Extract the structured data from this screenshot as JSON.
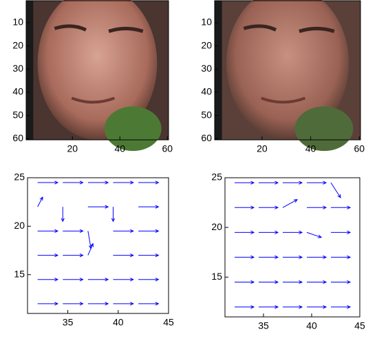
{
  "chart_data": [
    {
      "type": "image",
      "xlim": [
        0.5,
        60.5
      ],
      "ylim": [
        0.5,
        60.5
      ],
      "xticks": [
        20,
        40,
        60
      ],
      "yticks": [
        10,
        20,
        30,
        40,
        50,
        60
      ]
    },
    {
      "type": "image",
      "xlim": [
        0.5,
        60.5
      ],
      "ylim": [
        0.5,
        60.5
      ],
      "xticks": [
        20,
        40,
        60
      ],
      "yticks": [
        10,
        20,
        30,
        40,
        50,
        60
      ]
    },
    {
      "type": "quiver",
      "color": "#0000ff",
      "xlim": [
        31,
        45
      ],
      "ylim": [
        11,
        25
      ],
      "xticks": [
        35,
        40,
        45
      ],
      "yticks": [
        15,
        20,
        25
      ],
      "x": [
        32,
        34.5,
        37,
        39.5,
        42,
        32,
        34.5,
        37,
        39.5,
        42,
        32,
        34.5,
        37,
        39.5,
        42,
        32,
        34.5,
        37,
        39.5,
        42,
        32,
        34.5,
        37,
        39.5,
        42,
        32,
        34.5,
        37,
        39.5,
        42
      ],
      "y": [
        12,
        12,
        12,
        12,
        12,
        14.5,
        14.5,
        14.5,
        14.5,
        14.5,
        17,
        17,
        17,
        17,
        17,
        19.5,
        19.5,
        19.5,
        19.5,
        19.5,
        22,
        22,
        22,
        22,
        22,
        24.5,
        24.5,
        24.5,
        24.5,
        24.5
      ],
      "u": [
        2,
        2,
        2,
        2,
        2,
        2,
        2,
        2,
        2,
        2,
        2,
        2,
        0.5,
        2,
        2,
        2,
        2,
        0.3,
        2,
        2,
        0.5,
        0,
        2,
        0,
        2,
        2,
        2,
        2,
        2,
        2
      ],
      "v": [
        0,
        0,
        0,
        0,
        0,
        0,
        0,
        0,
        0,
        0,
        0,
        0,
        1.2,
        0,
        0,
        0,
        0,
        -1.8,
        0,
        0,
        1,
        -1.5,
        0,
        -1.5,
        0,
        0,
        0,
        0,
        0,
        0
      ]
    },
    {
      "type": "quiver",
      "color": "#0000ff",
      "xlim": [
        31,
        45
      ],
      "ylim": [
        11,
        25
      ],
      "xticks": [
        35,
        40,
        45
      ],
      "yticks": [
        15,
        20,
        25
      ],
      "x": [
        32,
        34.5,
        37,
        39.5,
        42,
        32,
        34.5,
        37,
        39.5,
        42,
        32,
        34.5,
        37,
        39.5,
        42,
        32,
        34.5,
        37,
        39.5,
        42,
        32,
        34.5,
        37,
        39.5,
        42,
        32,
        34.5,
        37,
        39.5,
        42
      ],
      "y": [
        12,
        12,
        12,
        12,
        12,
        14.5,
        14.5,
        14.5,
        14.5,
        14.5,
        17,
        17,
        17,
        17,
        17,
        19.5,
        19.5,
        19.5,
        19.5,
        19.5,
        22,
        22,
        22,
        22,
        22,
        24.5,
        24.5,
        24.5,
        24.5,
        24.5
      ],
      "u": [
        2,
        2,
        2,
        2,
        2,
        2,
        2,
        2,
        2,
        2,
        2,
        2,
        2,
        2,
        2,
        2,
        2,
        2,
        1.5,
        2,
        2,
        2,
        1.5,
        2,
        2,
        2,
        2,
        2,
        2,
        1
      ],
      "v": [
        0,
        0,
        0,
        0,
        0,
        0,
        0,
        0,
        0,
        0,
        0,
        0,
        0,
        0,
        0,
        0,
        0,
        0,
        -0.5,
        0,
        0,
        0,
        0.8,
        0,
        0,
        0,
        0,
        0,
        0,
        -1.5
      ]
    }
  ]
}
